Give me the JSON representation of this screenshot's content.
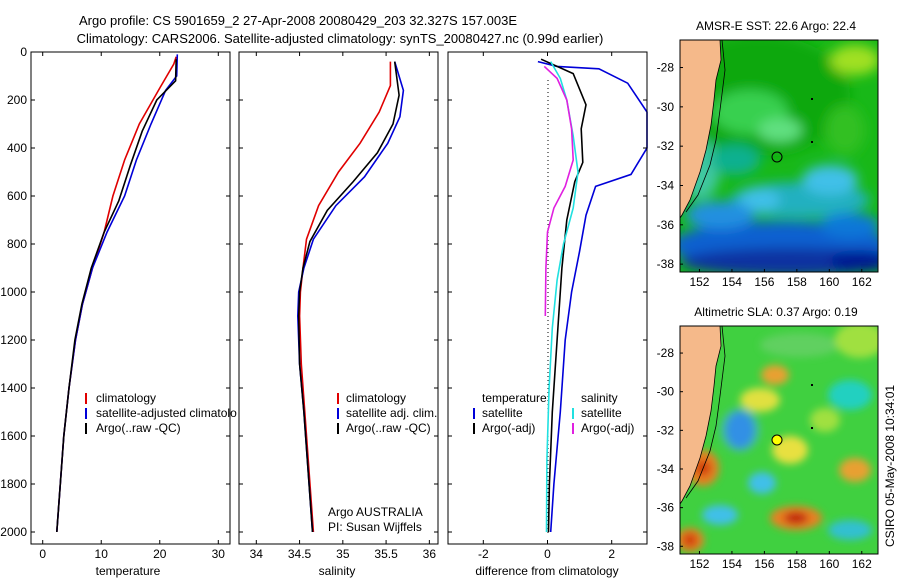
{
  "title": {
    "line1": "Argo profile: CS 5901659_2 27-Apr-2008 20080429_203 32.327S 157.003E",
    "line2": "Climatology: CARS2006. Satellite-adjusted climatology: synTS_20080427.nc (0.99d earlier)"
  },
  "side_text": "CSIRO 05-May-2008 10:34:01",
  "colors": {
    "climatology": "#e00000",
    "satellite": "#0000d8",
    "argo": "#000000",
    "sat_cyan": "#20e0e0",
    "argo_magenta": "#e020e0"
  },
  "chart_data": [
    {
      "type": "line",
      "xlabel": "temperature",
      "xlim": [
        -2,
        32
      ],
      "ylim": [
        2050,
        0
      ],
      "xticks": [
        0,
        10,
        20,
        30
      ],
      "yticks": [
        0,
        200,
        400,
        600,
        800,
        1000,
        1200,
        1400,
        1600,
        1800,
        2000
      ],
      "legend": {
        "placement": "bottom-right",
        "entries": [
          "climatology",
          "satellite-adjusted climatolo",
          "Argo(..raw -QC)"
        ]
      },
      "series": [
        {
          "name": "climatology",
          "color": "#e00000",
          "points": [
            [
              22.8,
              20
            ],
            [
              22.4,
              50
            ],
            [
              20,
              150
            ],
            [
              16.5,
              300
            ],
            [
              14,
              450
            ],
            [
              12,
              600
            ],
            [
              10.5,
              750
            ],
            [
              8.5,
              900
            ],
            [
              6.8,
              1050
            ],
            [
              5.6,
              1200
            ],
            [
              4.5,
              1400
            ],
            [
              3.6,
              1600
            ],
            [
              3,
              1800
            ],
            [
              2.4,
              2000
            ]
          ]
        },
        {
          "name": "satellite-adjusted climatology",
          "color": "#0000d8",
          "points": [
            [
              23,
              10
            ],
            [
              22.9,
              100
            ],
            [
              21,
              160
            ],
            [
              18.5,
              300
            ],
            [
              16,
              450
            ],
            [
              14,
              600
            ],
            [
              11,
              750
            ],
            [
              8.5,
              900
            ],
            [
              6.8,
              1050
            ],
            [
              5.6,
              1200
            ],
            [
              4.5,
              1400
            ],
            [
              3.6,
              1600
            ],
            [
              3,
              1800
            ],
            [
              2.4,
              2000
            ]
          ]
        },
        {
          "name": "Argo(..raw -QC)",
          "color": "#000000",
          "points": [
            [
              22.8,
              30
            ],
            [
              22.7,
              120
            ],
            [
              19.5,
              200
            ],
            [
              17,
              330
            ],
            [
              15,
              470
            ],
            [
              13,
              620
            ],
            [
              10.5,
              750
            ],
            [
              8.3,
              900
            ],
            [
              6.7,
              1050
            ],
            [
              5.5,
              1200
            ],
            [
              4.5,
              1400
            ],
            [
              3.6,
              1600
            ],
            [
              3,
              1800
            ],
            [
              2.4,
              2000
            ]
          ]
        }
      ]
    },
    {
      "type": "line",
      "xlabel": "salinity",
      "xlim": [
        33.8,
        36.1
      ],
      "ylim": [
        2050,
        0
      ],
      "xticks": [
        34,
        34.5,
        35,
        35.5,
        36
      ],
      "legend": {
        "placement": "bottom-right",
        "entries": [
          "climatology",
          "satellite adj. clim.",
          "Argo(..raw -QC)"
        ]
      },
      "annotation": [
        "Argo AUSTRALIA",
        "PI: Susan Wijffels"
      ],
      "series": [
        {
          "name": "climatology",
          "color": "#e00000",
          "points": [
            [
              35.55,
              40
            ],
            [
              35.55,
              140
            ],
            [
              35.42,
              250
            ],
            [
              35.2,
              380
            ],
            [
              34.95,
              500
            ],
            [
              34.72,
              640
            ],
            [
              34.58,
              780
            ],
            [
              34.54,
              900
            ],
            [
              34.51,
              1000
            ],
            [
              34.5,
              1100
            ],
            [
              34.52,
              1300
            ],
            [
              34.56,
              1500
            ],
            [
              34.61,
              1750
            ],
            [
              34.66,
              2000
            ]
          ]
        },
        {
          "name": "satellite adj. clim.",
          "color": "#0000d8",
          "points": [
            [
              35.6,
              40
            ],
            [
              35.7,
              160
            ],
            [
              35.66,
              270
            ],
            [
              35.52,
              380
            ],
            [
              35.25,
              520
            ],
            [
              34.92,
              640
            ],
            [
              34.66,
              780
            ],
            [
              34.55,
              900
            ],
            [
              34.49,
              1000
            ],
            [
              34.48,
              1100
            ],
            [
              34.5,
              1300
            ],
            [
              34.55,
              1500
            ],
            [
              34.6,
              1750
            ],
            [
              34.65,
              2000
            ]
          ]
        },
        {
          "name": "Argo(..raw -QC)",
          "color": "#000000",
          "points": [
            [
              35.6,
              40
            ],
            [
              35.65,
              180
            ],
            [
              35.58,
              300
            ],
            [
              35.4,
              420
            ],
            [
              35.12,
              540
            ],
            [
              34.82,
              660
            ],
            [
              34.62,
              790
            ],
            [
              34.54,
              900
            ],
            [
              34.5,
              1000
            ],
            [
              34.49,
              1100
            ],
            [
              34.5,
              1300
            ],
            [
              34.55,
              1500
            ],
            [
              34.6,
              1750
            ],
            [
              34.65,
              2000
            ]
          ]
        }
      ]
    },
    {
      "type": "line",
      "xlabel": "difference from climatology",
      "xlim": [
        -3.1,
        3.1
      ],
      "ylim": [
        2050,
        0
      ],
      "xticks": [
        -2,
        0,
        2
      ],
      "legend": {
        "placement": "bottom",
        "entries": [
          "temperature",
          "satellite",
          "Argo(-adj)",
          "salinity",
          "satellite",
          "Argo(-adj)"
        ]
      },
      "series": [
        {
          "name": "temperature satellite",
          "color": "#0000d8",
          "points": [
            [
              -0.3,
              40
            ],
            [
              0.3,
              60
            ],
            [
              1.6,
              70
            ],
            [
              2.5,
              130
            ],
            [
              3.1,
              250
            ],
            [
              3.1,
              400
            ],
            [
              2.6,
              510
            ],
            [
              1.5,
              560
            ],
            [
              1.2,
              680
            ],
            [
              1.0,
              830
            ],
            [
              0.75,
              1000
            ],
            [
              0.55,
              1200
            ],
            [
              0.4,
              1500
            ],
            [
              0.2,
              1800
            ],
            [
              0.1,
              2000
            ]
          ]
        },
        {
          "name": "temperature Argo(-adj)",
          "color": "#000000",
          "points": [
            [
              -0.2,
              30
            ],
            [
              0.8,
              90
            ],
            [
              1.2,
              220
            ],
            [
              1.05,
              320
            ],
            [
              1.1,
              460
            ],
            [
              0.85,
              540
            ],
            [
              0.6,
              700
            ],
            [
              0.45,
              900
            ],
            [
              0.3,
              1200
            ],
            [
              0.15,
              1500
            ],
            [
              0.06,
              1800
            ],
            [
              0.03,
              2000
            ]
          ]
        },
        {
          "name": "salinity satellite",
          "color": "#20e0e0",
          "points": [
            [
              0.1,
              40
            ],
            [
              0.4,
              110
            ],
            [
              0.6,
              200
            ],
            [
              0.8,
              350
            ],
            [
              0.95,
              500
            ],
            [
              0.8,
              650
            ],
            [
              0.5,
              800
            ],
            [
              0.3,
              950
            ],
            [
              0.15,
              1150
            ],
            [
              0.05,
              1400
            ],
            [
              -0.02,
              1700
            ],
            [
              -0.03,
              2000
            ]
          ]
        },
        {
          "name": "salinity Argo(-adj)",
          "color": "#e020e0",
          "points": [
            [
              -0.1,
              60
            ],
            [
              0.3,
              110
            ],
            [
              0.6,
              200
            ],
            [
              0.75,
              320
            ],
            [
              0.8,
              450
            ],
            [
              0.55,
              560
            ],
            [
              0.2,
              650
            ],
            [
              0.0,
              750
            ],
            [
              -0.05,
              900
            ],
            [
              -0.07,
              1100
            ]
          ]
        }
      ]
    }
  ],
  "maps": [
    {
      "title": "AMSR-E SST: 22.6 Argo: 22.4",
      "xticks": [
        "152",
        "154",
        "156",
        "158",
        "160",
        "162"
      ],
      "yticks": [
        "-28",
        "-30",
        "-32",
        "-34",
        "-36",
        "-38"
      ]
    },
    {
      "title": "Altimetric SLA: 0.37 Argo: 0.19",
      "xticks": [
        "152",
        "154",
        "156",
        "158",
        "160",
        "162"
      ],
      "yticks": [
        "-28",
        "-30",
        "-32",
        "-34",
        "-36",
        "-38"
      ]
    }
  ]
}
